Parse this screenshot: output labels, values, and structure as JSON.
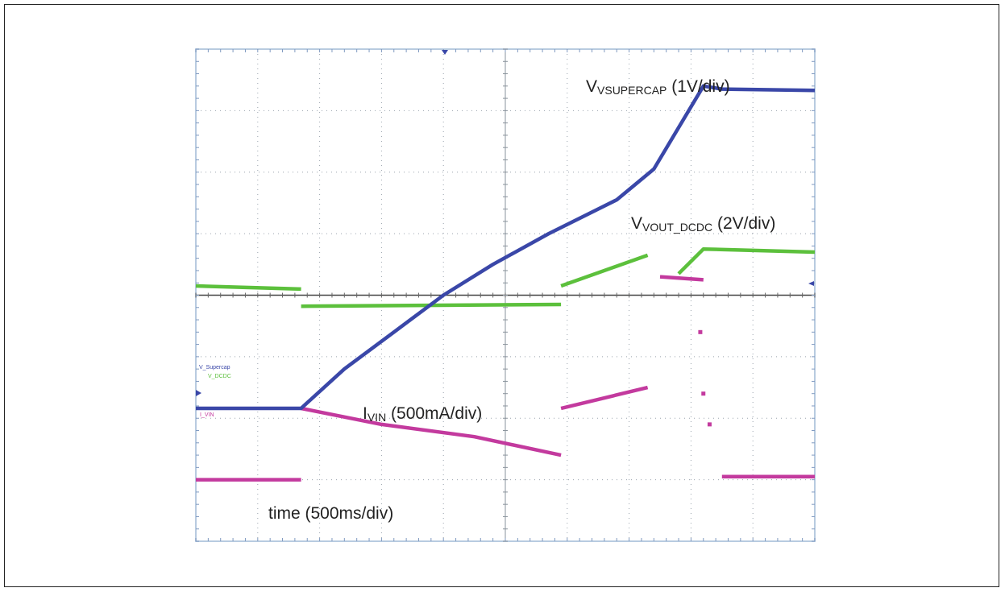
{
  "chart_data": {
    "type": "line",
    "title": "",
    "x_divisions": 10,
    "y_divisions": 8,
    "grid": true,
    "xlabel": {
      "text": "time (500ms/div)"
    },
    "channel_tags": [
      {
        "text": "V_Supercap",
        "color": "#3a47a8"
      },
      {
        "text": "V_DCDC",
        "color": "#5cc03c"
      },
      {
        "text": "I_VIN",
        "color": "#c33a9e"
      }
    ],
    "series_labels": [
      {
        "main": "V",
        "sub": "VSUPERCAP",
        "rest": " (1V/div)"
      },
      {
        "main": "V",
        "sub": "VOUT_DCDC",
        "rest": " (2V/div)"
      },
      {
        "main": "I",
        "sub": "VIN",
        "rest": " (500mA/div)"
      }
    ],
    "series": [
      {
        "name": "V_Supercap",
        "color": "#3a47a8",
        "segments": [
          [
            [
              0.0,
              -1.84
            ],
            [
              1.7,
              -1.84
            ],
            [
              2.4,
              -1.2
            ],
            [
              3.2,
              -0.6
            ],
            [
              4.0,
              0.0
            ],
            [
              4.8,
              0.5
            ],
            [
              5.7,
              1.0
            ],
            [
              6.8,
              1.55
            ],
            [
              7.4,
              2.05
            ],
            [
              8.2,
              3.4
            ],
            [
              8.5,
              3.35
            ],
            [
              10.0,
              3.33
            ]
          ]
        ]
      },
      {
        "name": "V_DCDC",
        "color": "#5cc03c",
        "segments": [
          [
            [
              0.0,
              0.15
            ],
            [
              1.7,
              0.1
            ]
          ],
          [
            [
              1.7,
              -0.18
            ],
            [
              5.9,
              -0.15
            ]
          ],
          [
            [
              5.9,
              0.15
            ],
            [
              7.3,
              0.65
            ]
          ],
          [
            [
              7.8,
              0.35
            ],
            [
              8.2,
              0.75
            ],
            [
              10.0,
              0.7
            ]
          ]
        ]
      },
      {
        "name": "I_VIN",
        "color": "#c33a9e",
        "segments": [
          [
            [
              0.0,
              -3.0
            ],
            [
              1.7,
              -3.0
            ]
          ],
          [
            [
              1.7,
              -1.84
            ],
            [
              3.0,
              -2.1
            ],
            [
              4.5,
              -2.3
            ],
            [
              5.9,
              -2.6
            ]
          ],
          [
            [
              5.9,
              -1.84
            ],
            [
              7.3,
              -1.5
            ]
          ],
          [
            [
              7.5,
              0.3
            ],
            [
              8.2,
              0.25
            ]
          ],
          [
            [
              8.5,
              -2.95
            ],
            [
              10.0,
              -2.95
            ]
          ]
        ],
        "dots": [
          [
            8.15,
            -0.6
          ],
          [
            8.2,
            -1.6
          ],
          [
            8.3,
            -2.1
          ]
        ]
      }
    ]
  }
}
